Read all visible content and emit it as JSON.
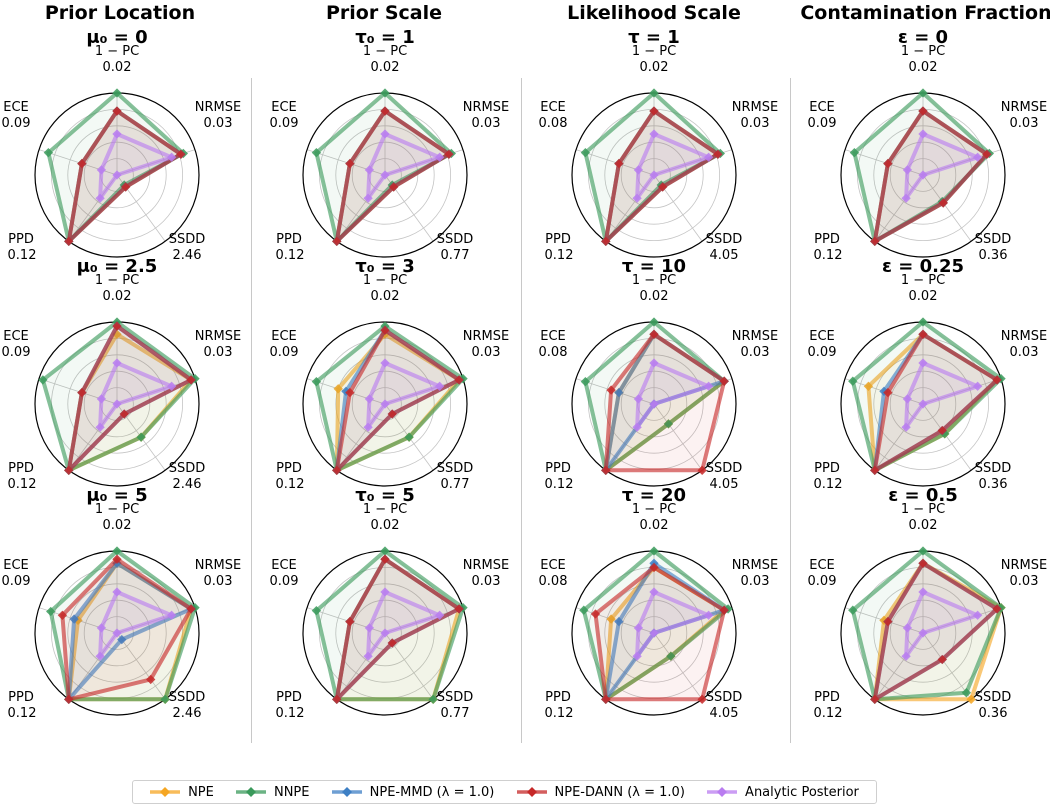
{
  "columns": [
    "Prior Location",
    "Prior Scale",
    "Likelihood Scale",
    "Contamination Fraction"
  ],
  "legend": [
    {
      "name": "NPE",
      "color": "#f5a623"
    },
    {
      "name": "NNPE",
      "color": "#3a9a5b"
    },
    {
      "name": "NPE-MMD (λ = 1.0)",
      "color": "#3d7fc4"
    },
    {
      "name": "NPE-DANN (λ = 1.0)",
      "color": "#c62828"
    },
    {
      "name": "Analytic Posterior",
      "color": "#b97cf0"
    }
  ],
  "chart_data": [
    {
      "type": "radar",
      "title": "μ₀ = 0",
      "axes": [
        "1 − PC",
        "NRMSE",
        "SSDD",
        "PPD",
        "ECE"
      ],
      "axis_max": [
        "0.02",
        "0.03",
        "2.46",
        "0.12",
        "0.09"
      ],
      "series": [
        {
          "name": "NPE",
          "values": [
            0.78,
            0.82,
            0.18,
            1.0,
            0.45
          ]
        },
        {
          "name": "NNPE",
          "values": [
            1.0,
            0.85,
            0.15,
            1.0,
            0.88
          ]
        },
        {
          "name": "NPE-MMD (λ = 1.0)",
          "values": [
            0.78,
            0.82,
            0.18,
            1.0,
            0.45
          ]
        },
        {
          "name": "NPE-DANN (λ = 1.0)",
          "values": [
            0.78,
            0.82,
            0.18,
            1.0,
            0.45
          ]
        },
        {
          "name": "Analytic Posterior",
          "values": [
            0.5,
            0.7,
            0.0,
            0.35,
            0.2
          ]
        }
      ]
    },
    {
      "type": "radar",
      "title": "τ₀ = 1",
      "axes": [
        "1 − PC",
        "NRMSE",
        "SSDD",
        "PPD",
        "ECE"
      ],
      "axis_max": [
        "0.02",
        "0.03",
        "0.77",
        "0.12",
        "0.09"
      ],
      "series": [
        {
          "name": "NPE",
          "values": [
            0.78,
            0.82,
            0.18,
            1.0,
            0.45
          ]
        },
        {
          "name": "NNPE",
          "values": [
            1.0,
            0.85,
            0.15,
            1.0,
            0.88
          ]
        },
        {
          "name": "NPE-MMD (λ = 1.0)",
          "values": [
            0.78,
            0.82,
            0.18,
            1.0,
            0.45
          ]
        },
        {
          "name": "NPE-DANN (λ = 1.0)",
          "values": [
            0.78,
            0.82,
            0.18,
            1.0,
            0.45
          ]
        },
        {
          "name": "Analytic Posterior",
          "values": [
            0.5,
            0.7,
            0.0,
            0.35,
            0.2
          ]
        }
      ]
    },
    {
      "type": "radar",
      "title": "τ = 1",
      "axes": [
        "1 − PC",
        "NRMSE",
        "SSDD",
        "PPD",
        "ECE"
      ],
      "axis_max": [
        "0.02",
        "0.03",
        "4.05",
        "0.12",
        "0.08"
      ],
      "series": [
        {
          "name": "NPE",
          "values": [
            0.78,
            0.82,
            0.18,
            1.0,
            0.45
          ]
        },
        {
          "name": "NNPE",
          "values": [
            1.0,
            0.85,
            0.15,
            1.0,
            0.88
          ]
        },
        {
          "name": "NPE-MMD (λ = 1.0)",
          "values": [
            0.78,
            0.82,
            0.18,
            1.0,
            0.45
          ]
        },
        {
          "name": "NPE-DANN (λ = 1.0)",
          "values": [
            0.78,
            0.82,
            0.18,
            1.0,
            0.45
          ]
        },
        {
          "name": "Analytic Posterior",
          "values": [
            0.5,
            0.7,
            0.0,
            0.35,
            0.2
          ]
        }
      ]
    },
    {
      "type": "radar",
      "title": "ε = 0",
      "axes": [
        "1 − PC",
        "NRMSE",
        "SSDD",
        "PPD",
        "ECE"
      ],
      "axis_max": [
        "0.02",
        "0.03",
        "0.36",
        "0.12",
        "0.09"
      ],
      "series": [
        {
          "name": "NPE",
          "values": [
            0.78,
            0.82,
            0.42,
            1.0,
            0.45
          ]
        },
        {
          "name": "NNPE",
          "values": [
            1.0,
            0.85,
            0.4,
            1.0,
            0.88
          ]
        },
        {
          "name": "NPE-MMD (λ = 1.0)",
          "values": [
            0.78,
            0.82,
            0.42,
            1.0,
            0.45
          ]
        },
        {
          "name": "NPE-DANN (λ = 1.0)",
          "values": [
            0.78,
            0.82,
            0.42,
            1.0,
            0.45
          ]
        },
        {
          "name": "Analytic Posterior",
          "values": [
            0.5,
            0.7,
            0.0,
            0.35,
            0.2
          ]
        }
      ]
    },
    {
      "type": "radar",
      "title": "μ₀ = 2.5",
      "axes": [
        "1 − PC",
        "NRMSE",
        "SSDD",
        "PPD",
        "ECE"
      ],
      "axis_max": [
        "0.02",
        "0.03",
        "2.46",
        "0.12",
        "0.09"
      ],
      "series": [
        {
          "name": "NPE",
          "values": [
            0.85,
            0.95,
            0.5,
            1.0,
            0.45
          ]
        },
        {
          "name": "NNPE",
          "values": [
            1.0,
            1.0,
            0.5,
            1.0,
            0.95
          ]
        },
        {
          "name": "NPE-MMD (λ = 1.0)",
          "values": [
            0.95,
            0.95,
            0.15,
            1.0,
            0.45
          ]
        },
        {
          "name": "NPE-DANN (λ = 1.0)",
          "values": [
            0.95,
            0.95,
            0.15,
            1.0,
            0.45
          ]
        },
        {
          "name": "Analytic Posterior",
          "values": [
            0.5,
            0.7,
            0.0,
            0.35,
            0.2
          ]
        }
      ]
    },
    {
      "type": "radar",
      "title": "τ₀ = 3",
      "axes": [
        "1 − PC",
        "NRMSE",
        "SSDD",
        "PPD",
        "ECE"
      ],
      "axis_max": [
        "0.02",
        "0.03",
        "0.77",
        "0.12",
        "0.09"
      ],
      "series": [
        {
          "name": "NPE",
          "values": [
            0.85,
            0.95,
            0.5,
            1.0,
            0.6
          ]
        },
        {
          "name": "NNPE",
          "values": [
            0.95,
            1.0,
            0.5,
            1.0,
            0.88
          ]
        },
        {
          "name": "NPE-MMD (λ = 1.0)",
          "values": [
            0.9,
            0.95,
            0.15,
            1.0,
            0.5
          ]
        },
        {
          "name": "NPE-DANN (λ = 1.0)",
          "values": [
            0.9,
            0.95,
            0.15,
            1.0,
            0.45
          ]
        },
        {
          "name": "Analytic Posterior",
          "values": [
            0.5,
            0.7,
            0.0,
            0.35,
            0.2
          ]
        }
      ]
    },
    {
      "type": "radar",
      "title": "τ = 10",
      "axes": [
        "1 − PC",
        "NRMSE",
        "SSDD",
        "PPD",
        "ECE"
      ],
      "axis_max": [
        "0.02",
        "0.03",
        "4.05",
        "0.12",
        "0.08"
      ],
      "series": [
        {
          "name": "NPE",
          "values": [
            0.85,
            0.9,
            0.3,
            1.0,
            0.45
          ]
        },
        {
          "name": "NNPE",
          "values": [
            1.0,
            0.9,
            0.3,
            1.0,
            0.88
          ]
        },
        {
          "name": "NPE-MMD (λ = 1.0)",
          "values": [
            0.85,
            0.9,
            0.0,
            1.0,
            0.45
          ]
        },
        {
          "name": "NPE-DANN (λ = 1.0)",
          "values": [
            0.85,
            0.9,
            1.0,
            1.0,
            0.55
          ]
        },
        {
          "name": "Analytic Posterior",
          "values": [
            0.5,
            0.7,
            0.0,
            0.35,
            0.2
          ]
        }
      ]
    },
    {
      "type": "radar",
      "title": "ε = 0.25",
      "axes": [
        "1 − PC",
        "NRMSE",
        "SSDD",
        "PPD",
        "ECE"
      ],
      "axis_max": [
        "0.02",
        "0.03",
        "0.36",
        "0.12",
        "0.09"
      ],
      "series": [
        {
          "name": "NPE",
          "values": [
            0.85,
            0.95,
            0.45,
            1.0,
            0.7
          ]
        },
        {
          "name": "NNPE",
          "values": [
            1.0,
            1.0,
            0.45,
            1.0,
            0.9
          ]
        },
        {
          "name": "NPE-MMD (λ = 1.0)",
          "values": [
            0.85,
            0.95,
            0.4,
            1.0,
            0.5
          ]
        },
        {
          "name": "NPE-DANN (λ = 1.0)",
          "values": [
            0.85,
            0.95,
            0.4,
            1.0,
            0.45
          ]
        },
        {
          "name": "Analytic Posterior",
          "values": [
            0.5,
            0.7,
            0.0,
            0.35,
            0.2
          ]
        }
      ]
    },
    {
      "type": "radar",
      "title": "μ₀ = 5",
      "axes": [
        "1 − PC",
        "NRMSE",
        "SSDD",
        "PPD",
        "ECE"
      ],
      "axis_max": [
        "0.02",
        "0.03",
        "2.46",
        "0.12",
        "0.09"
      ],
      "series": [
        {
          "name": "NPE",
          "values": [
            0.85,
            0.95,
            1.0,
            1.0,
            0.5
          ]
        },
        {
          "name": "NNPE",
          "values": [
            1.0,
            1.0,
            1.0,
            1.0,
            0.85
          ]
        },
        {
          "name": "NPE-MMD (λ = 1.0)",
          "values": [
            0.85,
            0.95,
            0.1,
            1.0,
            0.55
          ]
        },
        {
          "name": "NPE-DANN (λ = 1.0)",
          "values": [
            0.9,
            0.95,
            0.7,
            1.0,
            0.7
          ]
        },
        {
          "name": "Analytic Posterior",
          "values": [
            0.5,
            0.7,
            0.0,
            0.35,
            0.2
          ]
        }
      ]
    },
    {
      "type": "radar",
      "title": "τ₀ = 5",
      "axes": [
        "1 − PC",
        "NRMSE",
        "SSDD",
        "PPD",
        "ECE"
      ],
      "axis_max": [
        "0.02",
        "0.03",
        "0.77",
        "0.12",
        "0.09"
      ],
      "series": [
        {
          "name": "NPE",
          "values": [
            0.9,
            0.95,
            1.0,
            1.0,
            0.45
          ]
        },
        {
          "name": "NNPE",
          "values": [
            1.0,
            1.0,
            1.0,
            1.0,
            0.88
          ]
        },
        {
          "name": "NPE-MMD (λ = 1.0)",
          "values": [
            0.9,
            0.95,
            0.15,
            1.0,
            0.45
          ]
        },
        {
          "name": "NPE-DANN (λ = 1.0)",
          "values": [
            0.9,
            0.95,
            0.15,
            1.0,
            0.45
          ]
        },
        {
          "name": "Analytic Posterior",
          "values": [
            0.5,
            0.7,
            0.0,
            0.35,
            0.2
          ]
        }
      ]
    },
    {
      "type": "radar",
      "title": "τ = 20",
      "axes": [
        "1 − PC",
        "NRMSE",
        "SSDD",
        "PPD",
        "ECE"
      ],
      "axis_max": [
        "0.02",
        "0.03",
        "4.05",
        "0.12",
        "0.08"
      ],
      "series": [
        {
          "name": "NPE",
          "values": [
            0.8,
            0.9,
            0.35,
            1.0,
            0.55
          ]
        },
        {
          "name": "NNPE",
          "values": [
            1.0,
            0.95,
            0.35,
            1.0,
            0.9
          ]
        },
        {
          "name": "NPE-MMD (λ = 1.0)",
          "values": [
            0.85,
            0.9,
            0.0,
            1.0,
            0.45
          ]
        },
        {
          "name": "NPE-DANN (λ = 1.0)",
          "values": [
            0.8,
            0.9,
            1.0,
            1.0,
            0.75
          ]
        },
        {
          "name": "Analytic Posterior",
          "values": [
            0.5,
            0.7,
            0.0,
            0.35,
            0.2
          ]
        }
      ]
    },
    {
      "type": "radar",
      "title": "ε = 0.5",
      "axes": [
        "1 − PC",
        "NRMSE",
        "SSDD",
        "PPD",
        "ECE"
      ],
      "axis_max": [
        "0.02",
        "0.03",
        "0.36",
        "0.12",
        "0.09"
      ],
      "series": [
        {
          "name": "NPE",
          "values": [
            0.85,
            1.0,
            1.0,
            1.0,
            0.5
          ]
        },
        {
          "name": "NNPE",
          "values": [
            1.0,
            1.0,
            0.9,
            1.0,
            0.9
          ]
        },
        {
          "name": "NPE-MMD (λ = 1.0)",
          "values": [
            0.85,
            0.95,
            0.4,
            1.0,
            0.45
          ]
        },
        {
          "name": "NPE-DANN (λ = 1.0)",
          "values": [
            0.85,
            0.95,
            0.4,
            1.0,
            0.45
          ]
        },
        {
          "name": "Analytic Posterior",
          "values": [
            0.5,
            0.7,
            0.0,
            0.35,
            0.2
          ]
        }
      ]
    }
  ]
}
